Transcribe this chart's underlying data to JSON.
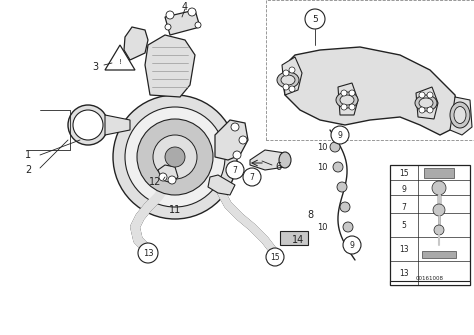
{
  "bg_color": "#ffffff",
  "lc": "#222222",
  "gray_light": "#e0e0e0",
  "gray_mid": "#c8c8c8",
  "gray_dark": "#aaaaaa",
  "catalog": "00161008",
  "figsize": [
    4.74,
    3.35
  ],
  "dpi": 100
}
